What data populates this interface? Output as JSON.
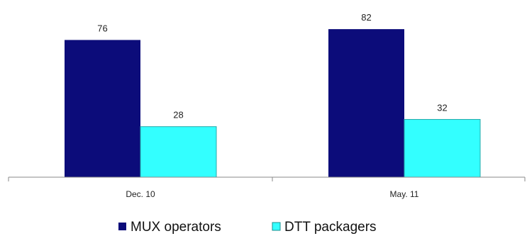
{
  "chart_data": {
    "type": "bar",
    "categories": [
      "Dec. 10",
      "May. 11"
    ],
    "series": [
      {
        "name": "MUX operators",
        "values": [
          76,
          82
        ],
        "color": "#0c0c7a"
      },
      {
        "name": "DTT packagers",
        "values": [
          28,
          32
        ],
        "color": "#33ffff"
      }
    ],
    "ylim": [
      0,
      95
    ],
    "grid": false,
    "legend_position": "bottom-center",
    "show_data_labels": true
  }
}
